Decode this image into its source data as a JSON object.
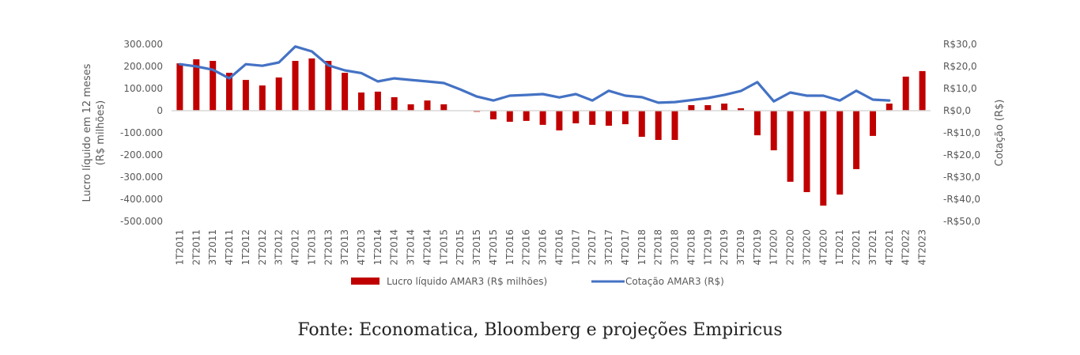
{
  "caption": "Fonte: Economatica, Bloomberg e projeções Empiricus",
  "colors": {
    "bar": "#c00000",
    "line": "#4472c4",
    "axis_text": "#595959",
    "zero_line": "#d9d9d9"
  },
  "chart_data": {
    "type": "bar+line",
    "title": "",
    "xlabel": "",
    "ylabel": "Lucro líquido em 12 meses (R$ milhões)",
    "ylabel_lines": [
      "Lucro líquido em 12 meses",
      "(R$ milhões)"
    ],
    "y2label": "Cotação (R$)",
    "ylim": [
      -500000,
      300000
    ],
    "y2lim": [
      -50,
      30
    ],
    "yticks": [
      300000,
      200000,
      100000,
      0,
      -100000,
      -200000,
      -300000,
      -400000,
      -500000
    ],
    "ytick_labels": [
      "300.000",
      "200.000",
      "100.000",
      "0",
      "-100.000",
      "-200.000",
      "-300.000",
      "-400.000",
      "-500.000"
    ],
    "y2ticks": [
      30,
      20,
      10,
      0,
      -10,
      -20,
      -30,
      -40,
      -50
    ],
    "y2tick_labels": [
      "R$30,0",
      "R$20,0",
      "R$10,0",
      "R$0,0",
      "-R$10,0",
      "-R$20,0",
      "-R$30,0",
      "-R$40,0",
      "-R$50,0"
    ],
    "grid": false,
    "legend_position": "bottom",
    "categories": [
      "1T2011",
      "2T2011",
      "3T2011",
      "4T2011",
      "1T2012",
      "2T2012",
      "3T2012",
      "4T2012",
      "1T2013",
      "2T2013",
      "3T2013",
      "4T2013",
      "1T2014",
      "2T2014",
      "3T2014",
      "4T2014",
      "1T2015",
      "2T2015",
      "3T2015",
      "4T2015",
      "1T2016",
      "2T2016",
      "3T2016",
      "4T2016",
      "1T2017",
      "2T2017",
      "3T2017",
      "4T2017",
      "1T2018",
      "2T2018",
      "3T2018",
      "4T2018",
      "1T2019",
      "2T2019",
      "3T2019",
      "4T2019",
      "1T2020",
      "2T2020",
      "3T2020",
      "4T2020",
      "1T2021",
      "2T2021",
      "3T2021",
      "4T2021",
      "4T2022",
      "4T2023"
    ],
    "series": [
      {
        "name": "Lucro líquido AMAR3 (R$ milhões)",
        "type": "bar",
        "axis": "left",
        "values": [
          214000,
          232000,
          225000,
          171000,
          139000,
          114000,
          150000,
          225000,
          236000,
          225000,
          171000,
          82000,
          86000,
          61000,
          29000,
          46000,
          29000,
          0,
          -5000,
          -39000,
          -50000,
          -46000,
          -64000,
          -89000,
          -57000,
          -64000,
          -68000,
          -61000,
          -118000,
          -132000,
          -132000,
          25000,
          25000,
          32000,
          11000,
          -111000,
          -179000,
          -321000,
          -368000,
          -429000,
          -379000,
          -264000,
          -114000,
          32000,
          154000,
          179000
        ]
      },
      {
        "name": "Cotação AMAR3 (R$)",
        "type": "line",
        "axis": "right",
        "values": [
          21.0,
          20.0,
          18.5,
          14.6,
          21.0,
          20.3,
          21.8,
          29.0,
          26.8,
          20.5,
          18.2,
          17.0,
          13.2,
          14.6,
          13.9,
          13.2,
          12.5,
          9.6,
          6.4,
          4.6,
          6.8,
          7.1,
          7.5,
          6.0,
          7.5,
          4.6,
          9.0,
          6.8,
          6.1,
          3.6,
          3.9,
          4.8,
          5.7,
          7.1,
          8.9,
          12.9,
          4.2,
          8.2,
          6.8,
          6.8,
          4.6,
          9.0,
          5.0,
          4.6,
          null,
          null
        ]
      }
    ]
  }
}
